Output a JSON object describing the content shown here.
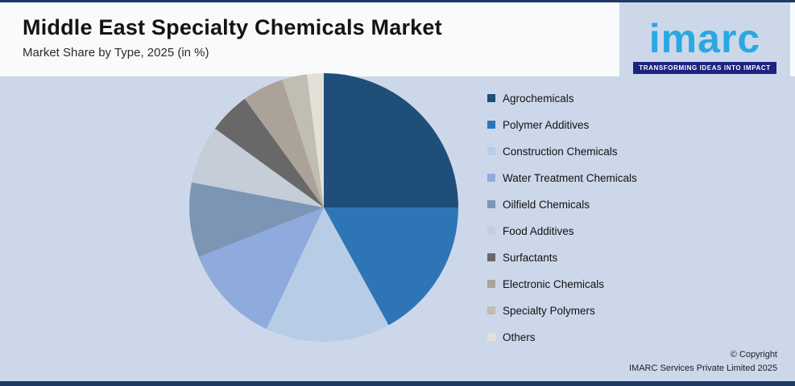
{
  "header": {
    "title": "Middle East Specialty Chemicals Market",
    "subtitle": "Market Share by Type, 2025 (in %)"
  },
  "logo": {
    "brand": "imarc",
    "tagline": "TRANSFORMING IDEAS INTO IMPACT",
    "brand_color": "#29a9e1",
    "tagline_bg_color": "#1b2380"
  },
  "chart_data": {
    "type": "pie",
    "title": "Middle East Specialty Chemicals Market",
    "subtitle": "Market Share by Type, 2025 (in %)",
    "unit": "%",
    "legend_position": "right",
    "start_angle_deg": 0,
    "direction": "clockwise",
    "slices": [
      {
        "label": "Agrochemicals",
        "value": 25,
        "color": "#1f4e79"
      },
      {
        "label": "Polymer Additives",
        "value": 17,
        "color": "#2e75b6"
      },
      {
        "label": "Construction Chemicals",
        "value": 15,
        "color": "#b7cde6"
      },
      {
        "label": "Water Treatment Chemicals",
        "value": 12,
        "color": "#8faadc"
      },
      {
        "label": "Oilfield Chemicals",
        "value": 9,
        "color": "#7d95b5"
      },
      {
        "label": "Food Additives",
        "value": 7,
        "color": "#c4cdd8"
      },
      {
        "label": "Surfactants",
        "value": 5,
        "color": "#686868"
      },
      {
        "label": "Electronic Chemicals",
        "value": 5,
        "color": "#aba399"
      },
      {
        "label": "Specialty Polymers",
        "value": 3,
        "color": "#c0bdb2"
      },
      {
        "label": "Others",
        "value": 2,
        "color": "#e3e1d7"
      }
    ]
  },
  "footer": {
    "copyright_line1": "© Copyright",
    "copyright_line2": "IMARC Services Private Limited 2025"
  }
}
